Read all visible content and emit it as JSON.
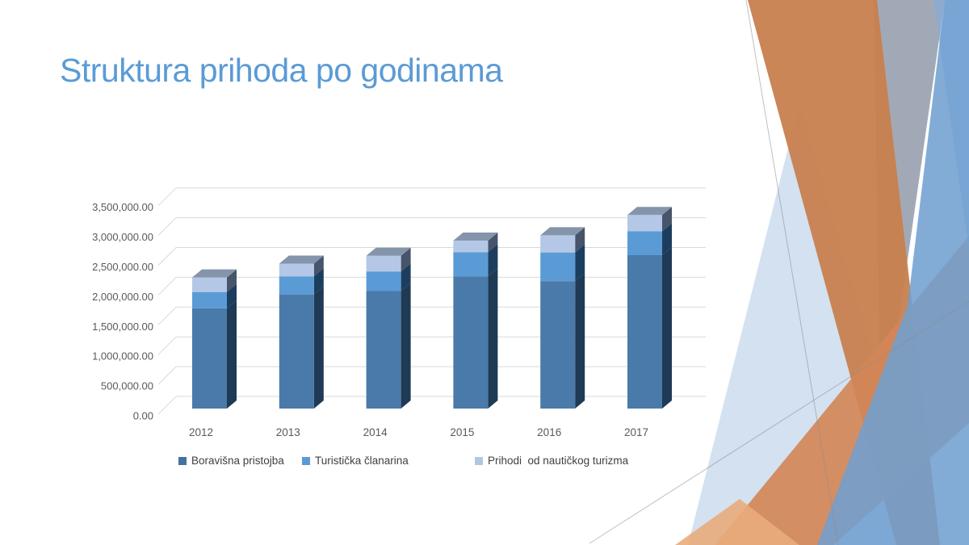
{
  "slide": {
    "title": "Struktura prihoda po godinama",
    "title_color": "#5B9BD5",
    "background_color": "#FFFFFF"
  },
  "chart_data": {
    "type": "bar",
    "subtype": "3d_stacked_column",
    "title": "",
    "xlabel": "",
    "ylabel": "",
    "categories": [
      "2012",
      "2013",
      "2014",
      "2015",
      "2016",
      "2017"
    ],
    "series": [
      {
        "name": "Boravišna pristojba",
        "legend_color": "#44719F",
        "front_color": "#4A7AA9",
        "side_color": "#1E3A54",
        "values": [
          1660000,
          1890000,
          1945000,
          2190000,
          2110000,
          2540000
        ]
      },
      {
        "name": "Turistička članarina",
        "legend_color": "#5B9BD5",
        "front_color": "#5B9BD5",
        "side_color": "#1C3E5E",
        "values": [
          270000,
          300000,
          325000,
          400000,
          475000,
          395000
        ]
      },
      {
        "name": "Prihodi  od nautičkog turizma",
        "legend_color": "#B2C6E4",
        "front_color": "#B4C7E7",
        "side_color": "#47546A",
        "values": [
          240000,
          210000,
          260000,
          190000,
          285000,
          270000
        ]
      }
    ],
    "totals": [
      2170000,
      2400000,
      2530000,
      2780000,
      2870000,
      3205000
    ],
    "bar_top_color": "#8495AB",
    "ylim": [
      0,
      3500000
    ],
    "y_tick_interval": 500000,
    "y_tick_labels": [
      "0.00",
      "500,000.00",
      "1,000,000.00",
      "1,500,000.00",
      "2,000,000.00",
      "2,500,000.00",
      "3,000,000.00",
      "3,500,000.00"
    ],
    "grid": true,
    "gridline_color": "#D9D9D9",
    "axis_text_color": "#595959",
    "legend_position": "bottom"
  },
  "decoration": {
    "shapes": [
      {
        "name": "light-blue-wedge",
        "fill": "#CBDCEE",
        "opacity": 0.85
      },
      {
        "name": "gray-band",
        "fill": "#98A0AE",
        "opacity": 0.9
      },
      {
        "name": "orange-band-vertical",
        "fill": "#C8804E",
        "opacity": 0.95
      },
      {
        "name": "orange-stripe-diagonal",
        "fill": "#D28758",
        "opacity": 0.92
      },
      {
        "name": "orange-sliver",
        "fill": "#E9AC7C",
        "opacity": 0.9
      },
      {
        "name": "steel-highlight",
        "fill": "#82ACD8",
        "opacity": 0.65
      },
      {
        "name": "steel-blue-main",
        "fill": "#6FA0D0",
        "opacity": 0.87
      }
    ],
    "line_color": "#8C8C8C"
  }
}
